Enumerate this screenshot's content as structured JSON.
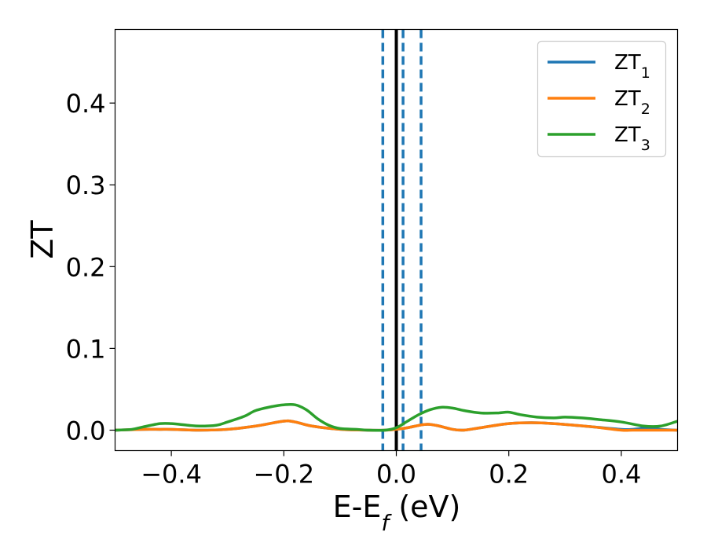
{
  "chart_data": {
    "type": "line",
    "xlabel": "E-E_f (eV)",
    "ylabel": "ZT",
    "xlim": [
      -0.5,
      0.5
    ],
    "ylim": [
      -0.025,
      0.49
    ],
    "xticks": [
      -0.4,
      -0.2,
      0.0,
      0.2,
      0.4
    ],
    "xtick_labels": [
      "−0.4",
      "−0.2",
      "0.0",
      "0.2",
      "0.4"
    ],
    "yticks": [
      0.0,
      0.1,
      0.2,
      0.3,
      0.4
    ],
    "ytick_labels": [
      "0.0",
      "0.1",
      "0.2",
      "0.3",
      "0.4"
    ],
    "grid": false,
    "legend_position": "top-right",
    "series": [
      {
        "name": "ZT1",
        "label_main": "ZT",
        "label_sub": "1",
        "color": "#1f77b4",
        "x": [
          -0.5,
          -0.45,
          -0.42,
          -0.4,
          -0.35,
          -0.3,
          -0.25,
          -0.2,
          -0.18,
          -0.15,
          -0.1,
          -0.05,
          -0.02,
          0.0,
          0.02,
          0.05,
          0.07,
          0.1,
          0.12,
          0.15,
          0.2,
          0.25,
          0.3,
          0.35,
          0.4,
          0.42,
          0.45,
          0.47,
          0.5
        ],
        "y": [
          0.0,
          0.001,
          0.001,
          0.001,
          0.0,
          0.001,
          0.005,
          0.011,
          0.01,
          0.005,
          0.001,
          0.0,
          0.0,
          0.001,
          0.003,
          0.007,
          0.006,
          0.001,
          0.0,
          0.003,
          0.008,
          0.009,
          0.007,
          0.004,
          0.001,
          0.001,
          0.003,
          0.001,
          0.0
        ]
      },
      {
        "name": "ZT2",
        "label_main": "ZT",
        "label_sub": "2",
        "color": "#ff7f0e",
        "x": [
          -0.5,
          -0.45,
          -0.42,
          -0.4,
          -0.35,
          -0.3,
          -0.25,
          -0.2,
          -0.18,
          -0.15,
          -0.1,
          -0.05,
          -0.02,
          0.0,
          0.02,
          0.05,
          0.07,
          0.1,
          0.12,
          0.15,
          0.2,
          0.25,
          0.3,
          0.35,
          0.4,
          0.42,
          0.45,
          0.47,
          0.5
        ],
        "y": [
          0.0,
          0.001,
          0.001,
          0.001,
          0.0,
          0.001,
          0.005,
          0.011,
          0.01,
          0.005,
          0.001,
          0.0,
          0.0,
          0.001,
          0.003,
          0.007,
          0.006,
          0.001,
          0.0,
          0.003,
          0.008,
          0.009,
          0.007,
          0.004,
          0.0,
          0.0,
          0.0,
          0.0,
          0.0
        ]
      },
      {
        "name": "ZT3",
        "label_main": "ZT",
        "label_sub": "3",
        "color": "#2ca02c",
        "x": [
          -0.5,
          -0.47,
          -0.45,
          -0.42,
          -0.4,
          -0.37,
          -0.35,
          -0.32,
          -0.3,
          -0.27,
          -0.25,
          -0.22,
          -0.2,
          -0.18,
          -0.16,
          -0.14,
          -0.12,
          -0.1,
          -0.07,
          -0.05,
          -0.02,
          0.0,
          0.02,
          0.04,
          0.06,
          0.08,
          0.1,
          0.12,
          0.15,
          0.18,
          0.2,
          0.22,
          0.25,
          0.28,
          0.3,
          0.33,
          0.36,
          0.4,
          0.44,
          0.47,
          0.5
        ],
        "y": [
          0.0,
          0.001,
          0.004,
          0.008,
          0.008,
          0.006,
          0.005,
          0.006,
          0.01,
          0.017,
          0.024,
          0.029,
          0.031,
          0.031,
          0.025,
          0.014,
          0.006,
          0.002,
          0.001,
          0.0,
          0.0,
          0.003,
          0.011,
          0.019,
          0.025,
          0.028,
          0.027,
          0.024,
          0.021,
          0.021,
          0.022,
          0.019,
          0.016,
          0.015,
          0.016,
          0.015,
          0.013,
          0.01,
          0.005,
          0.005,
          0.011
        ]
      }
    ],
    "vlines": [
      {
        "x": 0.0,
        "style": "solid",
        "color": "#000000"
      },
      {
        "x": -0.024,
        "style": "dashed",
        "color": "#1f77b4"
      },
      {
        "x": 0.012,
        "style": "dashed",
        "color": "#1f77b4"
      },
      {
        "x": 0.044,
        "style": "dashed",
        "color": "#1f77b4"
      }
    ]
  }
}
